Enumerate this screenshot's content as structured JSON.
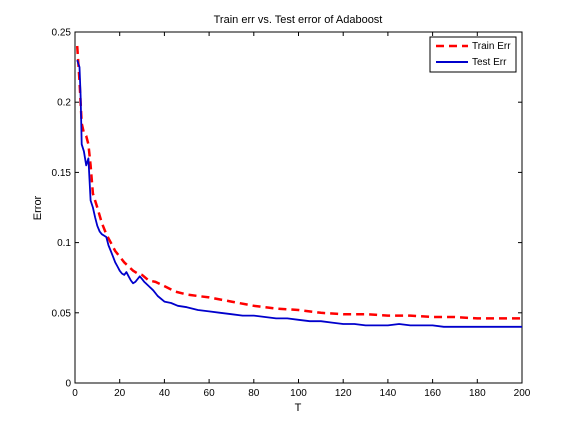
{
  "chart_data": {
    "type": "line",
    "title": "Train err vs. Test error of Adaboost",
    "xlabel": "T",
    "ylabel": "Error",
    "xlim": [
      0,
      200
    ],
    "ylim": [
      0,
      0.25
    ],
    "xticks": [
      0,
      20,
      40,
      60,
      80,
      100,
      120,
      140,
      160,
      180,
      200
    ],
    "yticks": [
      0,
      0.05,
      0.1,
      0.15,
      0.2,
      0.25
    ],
    "xtick_labels": [
      "0",
      "20",
      "40",
      "60",
      "80",
      "100",
      "120",
      "140",
      "160",
      "180",
      "200"
    ],
    "ytick_labels": [
      "0",
      "0.05",
      "0.1",
      "0.15",
      "0.2",
      "0.25"
    ],
    "grid": false,
    "legend_position": "top-right",
    "series": [
      {
        "name": "Train Err",
        "color": "#ff0000",
        "style": "dashed",
        "x": [
          1,
          2,
          3,
          4,
          5,
          6,
          7,
          8,
          10,
          12,
          14,
          16,
          18,
          20,
          22,
          24,
          26,
          28,
          30,
          33,
          36,
          40,
          45,
          50,
          55,
          60,
          70,
          80,
          90,
          100,
          110,
          120,
          130,
          140,
          150,
          160,
          170,
          180,
          190,
          200
        ],
        "y": [
          0.24,
          0.215,
          0.185,
          0.178,
          0.176,
          0.17,
          0.155,
          0.135,
          0.125,
          0.114,
          0.106,
          0.1,
          0.094,
          0.09,
          0.086,
          0.083,
          0.08,
          0.078,
          0.077,
          0.073,
          0.072,
          0.069,
          0.065,
          0.063,
          0.062,
          0.061,
          0.058,
          0.055,
          0.053,
          0.052,
          0.05,
          0.049,
          0.049,
          0.048,
          0.048,
          0.047,
          0.047,
          0.046,
          0.046,
          0.046
        ]
      },
      {
        "name": "Test Err",
        "color": "#0000cc",
        "style": "solid",
        "x": [
          1,
          2,
          2.5,
          3,
          4,
          5,
          6,
          6.5,
          7,
          8,
          9,
          10,
          11,
          12,
          13,
          14,
          15,
          16,
          17,
          18,
          19,
          20,
          21,
          22,
          23,
          24,
          25,
          26,
          27,
          28,
          29,
          30,
          31,
          33,
          35,
          37,
          40,
          43,
          46,
          50,
          55,
          60,
          65,
          70,
          75,
          80,
          85,
          90,
          95,
          100,
          105,
          110,
          115,
          120,
          125,
          130,
          135,
          140,
          145,
          150,
          155,
          160,
          165,
          170,
          175,
          180,
          185,
          190,
          195,
          200
        ],
        "y": [
          0.23,
          0.225,
          0.205,
          0.17,
          0.165,
          0.155,
          0.16,
          0.145,
          0.13,
          0.125,
          0.118,
          0.112,
          0.108,
          0.106,
          0.105,
          0.104,
          0.098,
          0.094,
          0.09,
          0.086,
          0.083,
          0.08,
          0.078,
          0.077,
          0.079,
          0.076,
          0.073,
          0.071,
          0.072,
          0.074,
          0.076,
          0.074,
          0.072,
          0.069,
          0.066,
          0.062,
          0.058,
          0.057,
          0.055,
          0.054,
          0.052,
          0.051,
          0.05,
          0.049,
          0.048,
          0.048,
          0.047,
          0.046,
          0.046,
          0.045,
          0.044,
          0.044,
          0.043,
          0.042,
          0.042,
          0.041,
          0.041,
          0.041,
          0.042,
          0.041,
          0.041,
          0.041,
          0.04,
          0.04,
          0.04,
          0.04,
          0.04,
          0.04,
          0.04,
          0.04
        ]
      }
    ]
  }
}
